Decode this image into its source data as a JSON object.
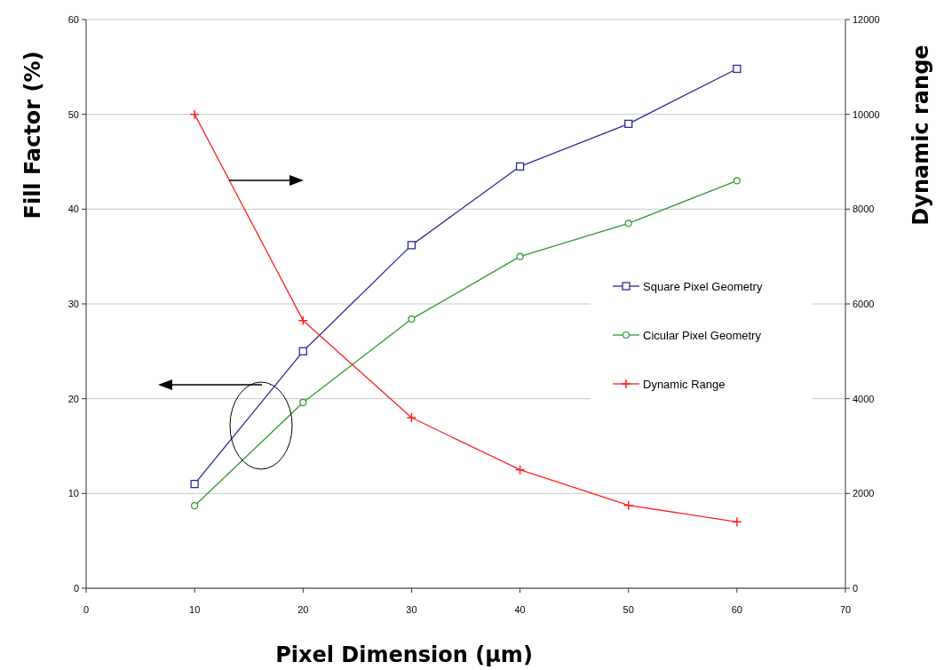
{
  "chart_data": {
    "type": "line",
    "xlabel": "Pixel Dimension (μm)",
    "ylabel": "Fill Factor (%)",
    "y2label": "Dynamic range",
    "x": [
      10,
      20,
      30,
      40,
      50,
      60
    ],
    "xlim": [
      0,
      70
    ],
    "xticks": [
      0,
      10,
      20,
      30,
      40,
      50,
      60,
      70
    ],
    "ylim": [
      0,
      60
    ],
    "yticks": [
      0,
      10,
      20,
      30,
      40,
      50,
      60
    ],
    "y2lim": [
      0,
      12000
    ],
    "y2ticks": [
      0,
      2000,
      4000,
      6000,
      8000,
      10000,
      12000
    ],
    "grid": "y",
    "legend": "right",
    "series": [
      {
        "name": "Square Pixel Geometry",
        "color": "#2b2b9c",
        "marker": "square",
        "values": [
          11,
          25,
          36.2,
          44.5,
          49,
          54.8
        ]
      },
      {
        "name": "Cicular Pixel Geometry",
        "color": "#2e9a2e",
        "marker": "circle",
        "values": [
          8.7,
          19.6,
          28.4,
          35,
          38.5,
          43
        ]
      },
      {
        "name": "Dynamic Range",
        "color": "#ff2020",
        "marker": "cross",
        "axis": "y2",
        "values": [
          10000,
          5650,
          3600,
          2500,
          1750,
          1400
        ]
      }
    ]
  }
}
